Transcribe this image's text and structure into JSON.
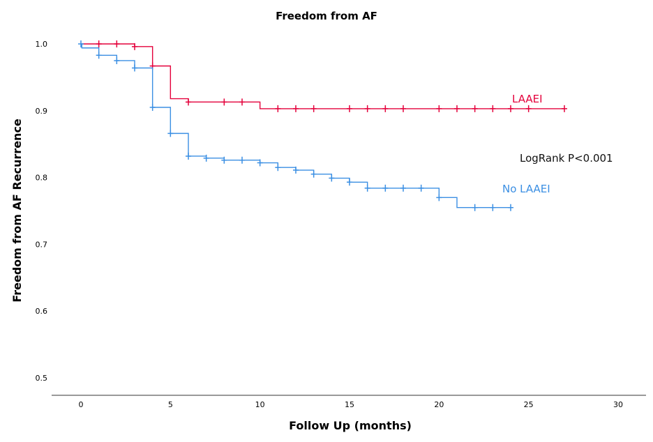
{
  "chart_data": {
    "type": "line",
    "subtype": "kaplan-meier",
    "title": "Freedom from AF",
    "xlabel": "Follow Up (months)",
    "ylabel": "Freedom from AF Recurrence",
    "xlim": [
      0,
      30
    ],
    "ylim": [
      0.5,
      1.0
    ],
    "xticks": [
      "0",
      "5",
      "10",
      "15",
      "20",
      "25",
      "30"
    ],
    "yticks": [
      "0.5",
      "0.6",
      "0.7",
      "0.8",
      "0.9",
      "1.0"
    ],
    "grid": false,
    "annotation": "LogRank P<0.001",
    "series": [
      {
        "name": "LAAEI",
        "color": "#e4003b",
        "steps": [
          [
            0,
            1.0
          ],
          [
            3,
            0.996
          ],
          [
            4,
            0.967
          ],
          [
            5,
            0.918
          ],
          [
            6,
            0.913
          ],
          [
            10,
            0.903
          ]
        ],
        "end": 27,
        "censored": [
          1,
          2,
          3,
          4,
          6,
          8,
          9,
          11,
          12,
          13,
          15,
          16,
          17,
          18,
          20,
          21,
          22,
          23,
          24,
          25,
          27
        ]
      },
      {
        "name": "No LAAEI",
        "color": "#3b8fe3",
        "steps": [
          [
            0,
            1.0
          ],
          [
            0.05,
            0.994
          ],
          [
            1,
            0.983
          ],
          [
            2,
            0.975
          ],
          [
            3,
            0.964
          ],
          [
            4,
            0.905
          ],
          [
            5,
            0.866
          ],
          [
            6,
            0.832
          ],
          [
            7,
            0.829
          ],
          [
            8,
            0.826
          ],
          [
            10,
            0.822
          ],
          [
            11,
            0.815
          ],
          [
            12,
            0.811
          ],
          [
            13,
            0.805
          ],
          [
            14,
            0.799
          ],
          [
            15,
            0.793
          ],
          [
            16,
            0.784
          ],
          [
            20,
            0.77
          ],
          [
            21,
            0.755
          ]
        ],
        "end": 24,
        "censored": [
          0,
          1,
          2,
          3,
          4,
          5,
          6,
          7,
          8,
          9,
          10,
          11,
          12,
          13,
          14,
          15,
          16,
          17,
          18,
          19,
          20,
          22,
          23,
          24
        ]
      }
    ]
  }
}
